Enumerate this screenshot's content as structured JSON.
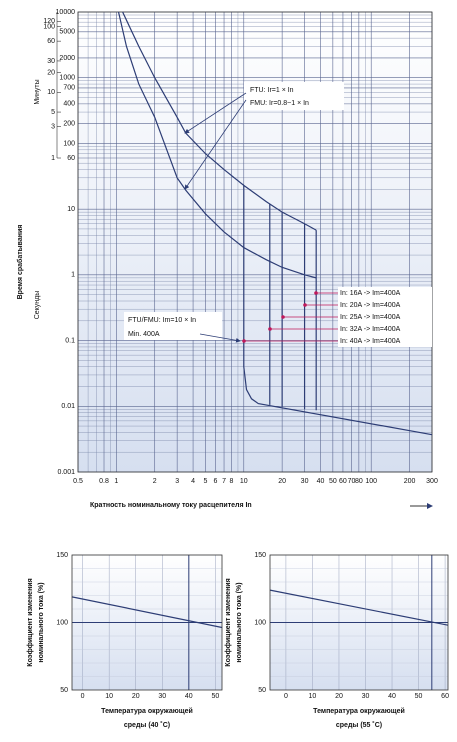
{
  "chart_data": [
    {
      "type": "line",
      "xscale": "log",
      "yscale": "log",
      "grid": true,
      "color": "#2d3d75",
      "ylabel": "Время срабатывания",
      "ylabel_minutes": "Минуты",
      "ylabel_seconds": "Секунды",
      "xlabel": "Кратность номинальному току расцепителя In",
      "xlim": [
        0.5,
        300
      ],
      "ylim": [
        0.001,
        10000
      ],
      "xticks": [
        0.5,
        0.8,
        1,
        2,
        3,
        4,
        5,
        6,
        7,
        8,
        10,
        20,
        30,
        40,
        50,
        60,
        70,
        80,
        100,
        200,
        300
      ],
      "x_minor_ticks": [
        0.6,
        0.7,
        0.9,
        9,
        90
      ],
      "yticks": [
        10000,
        5000,
        2000,
        1000,
        700,
        400,
        200,
        100,
        60,
        10,
        1,
        0.1,
        0.01,
        0.001
      ],
      "y_minor_ticks": [
        0.002,
        0.003,
        0.004,
        0.005,
        0.006,
        0.007,
        0.008,
        0.009,
        0.02,
        0.03,
        0.04,
        0.05,
        0.06,
        0.07,
        0.08,
        0.09,
        0.2,
        0.3,
        0.4,
        0.5,
        0.6,
        0.7,
        0.8,
        0.9,
        2,
        3,
        4,
        5,
        6,
        7,
        8,
        9,
        20,
        30,
        40,
        50,
        70,
        80,
        90,
        300,
        500,
        600,
        800,
        900,
        3000,
        4000,
        6000,
        7000,
        8000,
        9000
      ],
      "minute_ticks": [
        {
          "value": 7200,
          "label": "120"
        },
        {
          "value": 6000,
          "label": "100"
        },
        {
          "value": 3600,
          "label": "60"
        },
        {
          "value": 1800,
          "label": "30"
        },
        {
          "value": 1200,
          "label": "20"
        },
        {
          "value": 600,
          "label": "10"
        },
        {
          "value": 300,
          "label": "5"
        },
        {
          "value": 180,
          "label": "3"
        },
        {
          "value": 60,
          "label": "1"
        }
      ],
      "series": [
        {
          "x": [
            1.12,
            1.5,
            2,
            3,
            3.5,
            5,
            7,
            10,
            15,
            20,
            30,
            37
          ],
          "values": [
            10000,
            3000,
            1000,
            250,
            144,
            70,
            40,
            23,
            13,
            9,
            6,
            4.8
          ]
        },
        {
          "x": [
            1.04,
            1.2,
            1.5,
            2,
            3,
            3.5,
            5,
            7,
            10,
            15,
            20,
            30,
            37
          ],
          "values": [
            10000,
            3000,
            800,
            250,
            30,
            19.5,
            8.5,
            4.5,
            2.6,
            1.7,
            1.3,
            1,
            0.9
          ]
        },
        {
          "x": [
            10,
            10,
            10.5,
            11.5,
            13,
            300
          ],
          "values": [
            23,
            0.04,
            0.018,
            0.013,
            0.011,
            0.0037
          ]
        },
        {
          "x": [
            16,
            16
          ],
          "values": [
            12,
            0.0105
          ]
        },
        {
          "x": [
            20,
            20
          ],
          "values": [
            9,
            0.0098
          ]
        },
        {
          "x": [
            30,
            30
          ],
          "values": [
            6,
            0.009
          ]
        },
        {
          "x": [
            37,
            37
          ],
          "values": [
            4.8,
            0.0087
          ]
        }
      ],
      "annotations": [
        "FTU: Ir=1 × In",
        "FMU: Ir=0.8~1 × In",
        "FTU/FMU: Im=10 × In",
        "Min. 400A",
        "In: 16A -> Im=400A",
        "In: 20A -> Im=400A",
        "In: 25A -> Im=400A",
        "In: 32A -> Im=400A",
        "In: 40A -> Im=400A"
      ]
    },
    {
      "type": "line",
      "color": "#2d3d75",
      "ylabel": [
        "Коэффициент изменения",
        "номинального тока (%)"
      ],
      "xlabel": [
        "Температура окружающей",
        "среды (40 ˚C)"
      ],
      "xlim": [
        -4,
        52.5
      ],
      "ylim": [
        50,
        150
      ],
      "xticks": [
        0,
        10,
        20,
        30,
        40,
        50
      ],
      "yticks": [
        50,
        100,
        150
      ],
      "vline": 40,
      "hline": 100,
      "series": [
        {
          "x": [
            -4,
            52.5
          ],
          "values": [
            119,
            96.3
          ]
        }
      ]
    },
    {
      "type": "line",
      "color": "#2d3d75",
      "ylabel": [
        "Коэффициент изменения",
        "номинального тока (%)"
      ],
      "xlabel": [
        "Температура окружающей",
        "среды (55 ˚C)"
      ],
      "xlim": [
        -6,
        61.1
      ],
      "ylim": [
        50,
        150
      ],
      "xticks": [
        0,
        10,
        20,
        30,
        40,
        50,
        60
      ],
      "yticks": [
        50,
        100,
        150
      ],
      "vline": 55,
      "hline": 100,
      "series": [
        {
          "x": [
            -6,
            61.1
          ],
          "values": [
            124,
            98
          ]
        }
      ]
    }
  ]
}
